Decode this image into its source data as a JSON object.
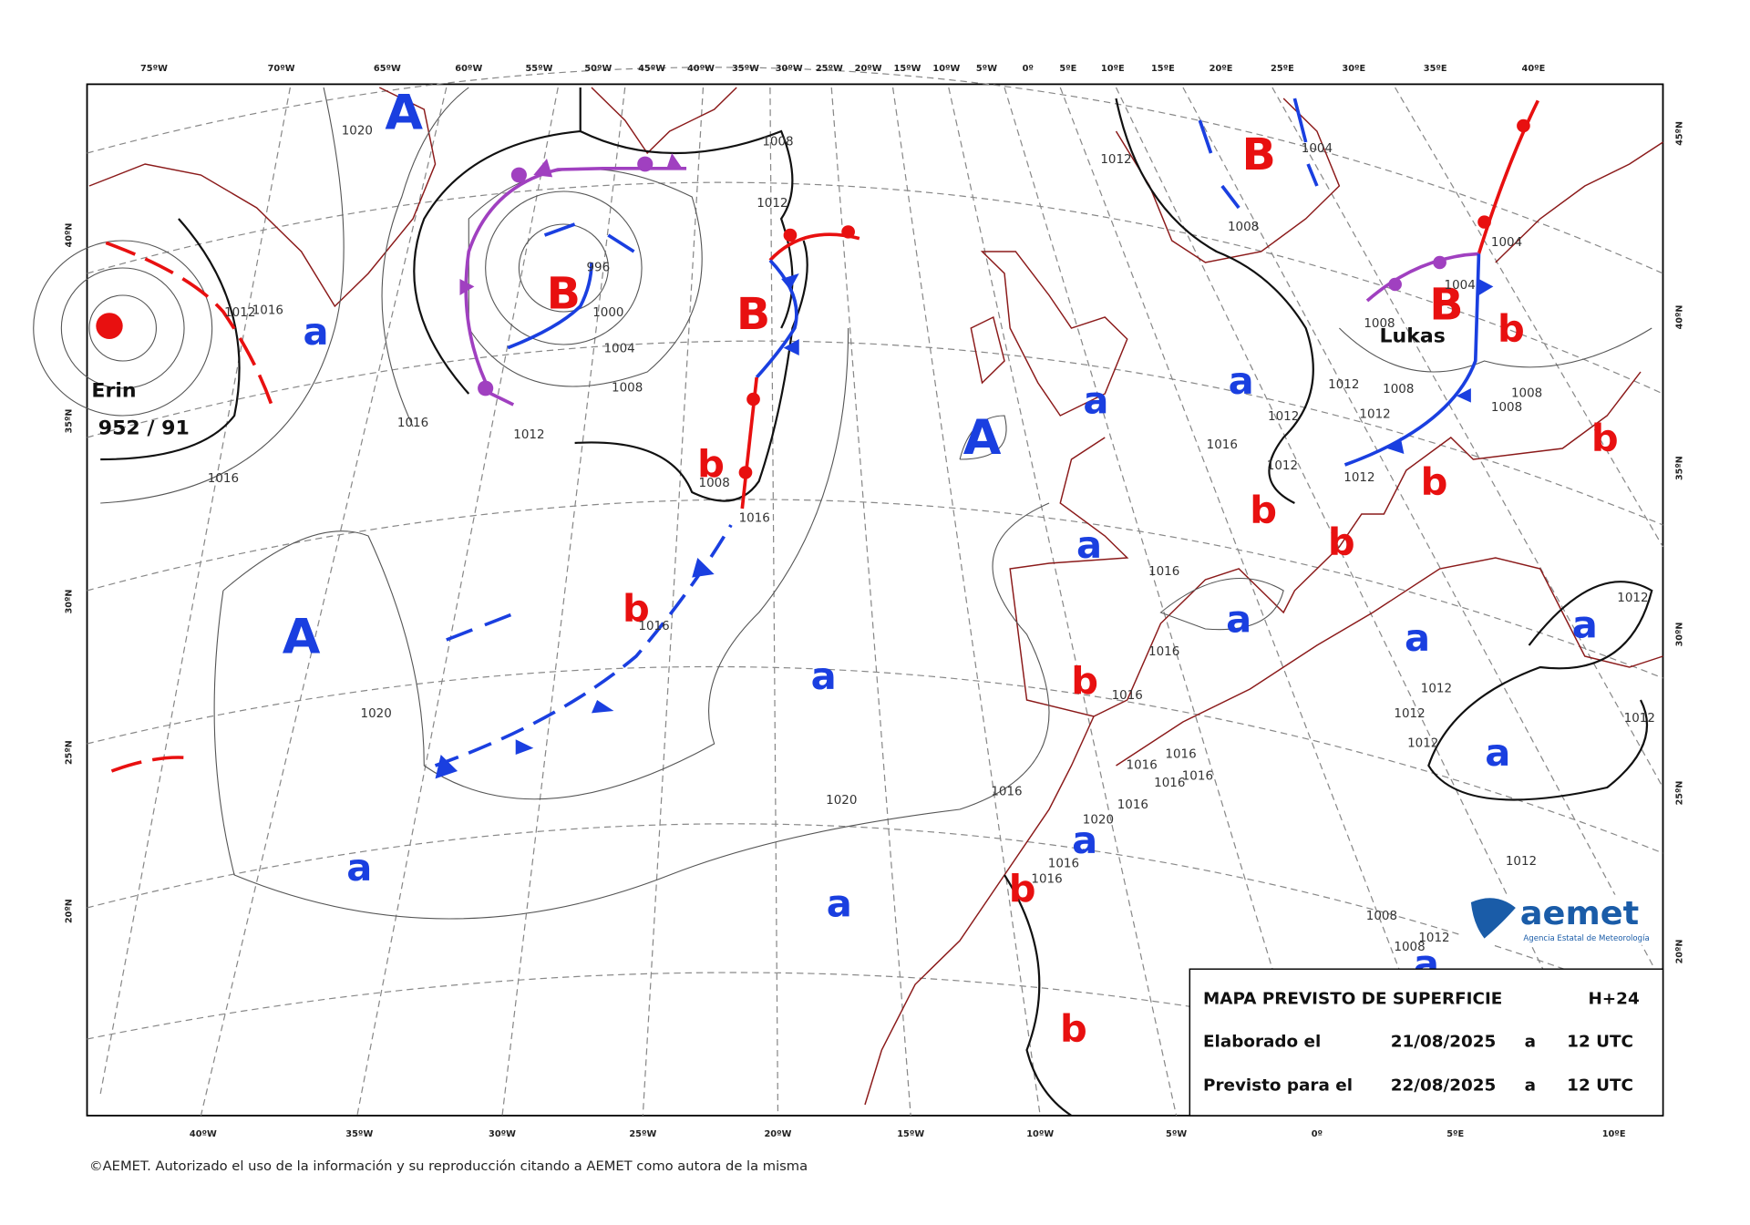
{
  "top_axis_labels": [
    "75ºW",
    "70ºW",
    "65ºW",
    "60ºW",
    "55ºW",
    "50ºW",
    "45ºW",
    "40ºW",
    "35ºW",
    "30ºW",
    "25ºW",
    "20ºW",
    "15ºW",
    "10ºW",
    "5ºW",
    "0º",
    "5ºE",
    "10ºE",
    "15ºE",
    "20ºE",
    "25ºE",
    "30ºE",
    "35ºE",
    "40ºE"
  ],
  "bottom_axis_labels": [
    "40ºW",
    "35ºW",
    "30ºW",
    "25ºW",
    "20ºW",
    "15ºW",
    "10ºW",
    "5ºW",
    "0º",
    "5ºE",
    "10ºE"
  ],
  "left_axis_labels": [
    "40ºN",
    "35ºN",
    "30ºN",
    "25ºN",
    "20ºN"
  ],
  "right_axis_labels": [
    "45ºN",
    "40ºN",
    "35ºN",
    "30ºN",
    "25ºN",
    "20ºN"
  ],
  "high_centers": [
    "A",
    "A",
    "A",
    "a",
    "a",
    "a",
    "a",
    "a",
    "a",
    "a",
    "a",
    "a",
    "a",
    "a",
    "a",
    "a"
  ],
  "low_centers": [
    "B",
    "B",
    "B",
    "B",
    "b",
    "b",
    "b",
    "b",
    "b",
    "b",
    "b",
    "b",
    "b",
    "b"
  ],
  "isobar_labels": [
    "1020",
    "1008",
    "1012",
    "996",
    "1000",
    "1004",
    "1008",
    "1012",
    "1016",
    "1016",
    "1016",
    "1012",
    "1008",
    "1016",
    "1016",
    "1020",
    "1020",
    "1016",
    "1016",
    "1016",
    "1016",
    "1016",
    "1012",
    "1012",
    "1012",
    "1012",
    "1012",
    "1008",
    "1008",
    "1004",
    "1004",
    "1008",
    "1008",
    "1008",
    "1004",
    "1012",
    "1012",
    "1012",
    "1012",
    "1012",
    "1012",
    "1012",
    "1016",
    "1016",
    "1016",
    "1016",
    "1016",
    "1020",
    "1016",
    "1016",
    "1008",
    "1012",
    "1008"
  ],
  "storm_labels": [
    "Erin",
    "952 / 91",
    "Lukas"
  ],
  "info_box": {
    "title": "MAPA PREVISTO DE SUPERFICIE",
    "lead": "H+24",
    "rows": [
      [
        "Elaborado el",
        "21/08/2025",
        "a",
        "12 UTC"
      ],
      [
        "Previsto para el",
        "22/08/2025",
        "a",
        "12 UTC"
      ]
    ]
  },
  "logo": {
    "name": "aemet",
    "subtitle": "Agencia Estatal de Meteorología"
  },
  "copyright": "©AEMET. Autorizado el uso de la información y su reproducción citando a AEMET como autora de la misma"
}
